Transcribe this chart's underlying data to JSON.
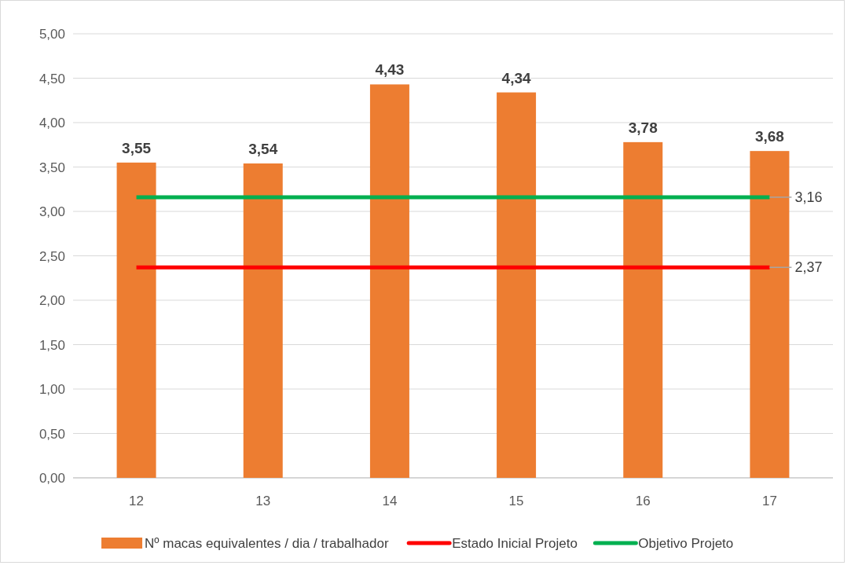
{
  "chart_data": {
    "type": "bar",
    "categories": [
      "12",
      "13",
      "14",
      "15",
      "16",
      "17"
    ],
    "series": [
      {
        "name": "Nº macas equivalentes / dia / trabalhador",
        "color": "#ed7d31",
        "values": [
          3.55,
          3.54,
          4.43,
          4.34,
          3.78,
          3.68
        ],
        "value_labels": [
          "3,55",
          "3,54",
          "4,43",
          "4,34",
          "3,78",
          "3,68"
        ]
      },
      {
        "name": "Estado Inicial Projeto",
        "type": "line",
        "color": "#ff0000",
        "values": [
          2.37,
          2.37,
          2.37,
          2.37,
          2.37,
          2.37
        ],
        "value_labels": [
          null,
          null,
          null,
          null,
          null,
          "2,37"
        ]
      },
      {
        "name": "Objetivo Projeto",
        "type": "line",
        "color": "#00b050",
        "values": [
          3.16,
          3.16,
          3.16,
          3.16,
          3.16,
          3.16
        ],
        "value_labels": [
          null,
          null,
          null,
          null,
          null,
          "3,16"
        ]
      }
    ],
    "ylim": [
      0,
      5
    ],
    "yticks": [
      {
        "value": 0,
        "label": "0,00"
      },
      {
        "value": 0.5,
        "label": "0,50"
      },
      {
        "value": 1,
        "label": "1,00"
      },
      {
        "value": 1.5,
        "label": "1,50"
      },
      {
        "value": 2,
        "label": "2,00"
      },
      {
        "value": 2.5,
        "label": "2,50"
      },
      {
        "value": 3,
        "label": "3,00"
      },
      {
        "value": 3.5,
        "label": "3,50"
      },
      {
        "value": 4,
        "label": "4,00"
      },
      {
        "value": 4.5,
        "label": "4,50"
      },
      {
        "value": 5,
        "label": "5,00"
      }
    ],
    "grid": "y",
    "legend": "bottom",
    "marker": "none",
    "line_style": "solid"
  }
}
